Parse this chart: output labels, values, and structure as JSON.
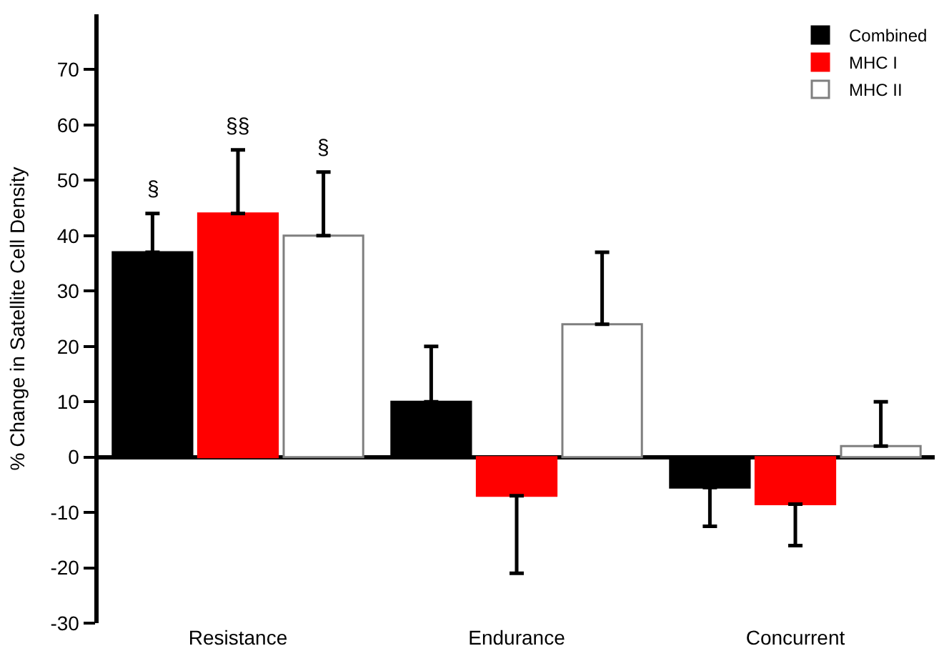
{
  "chart_data": {
    "type": "bar",
    "ylabel": "% Change in Satellite Cell Density",
    "categories": [
      "Resistance",
      "Endurance",
      "Concurrent"
    ],
    "series": [
      {
        "name": "Combined",
        "color": "#000000",
        "values": [
          37,
          10,
          -5.5
        ],
        "errors": [
          [
            37,
            44
          ],
          [
            10,
            20
          ],
          [
            -12.5,
            -5.5
          ]
        ]
      },
      {
        "name": "MHC I",
        "color": "#ff0000",
        "values": [
          44,
          -7,
          -8.5
        ],
        "errors": [
          [
            44,
            55.5
          ],
          [
            -21,
            -7
          ],
          [
            -16,
            -8.5
          ]
        ]
      },
      {
        "name": "MHC II",
        "color": "#ffffff",
        "values": [
          40,
          24,
          2
        ],
        "errors": [
          [
            40,
            51.5
          ],
          [
            24,
            37
          ],
          [
            2,
            10
          ]
        ]
      }
    ],
    "ylim": [
      -30,
      80
    ],
    "yticks": [
      -30,
      -20,
      -10,
      0,
      10,
      20,
      30,
      40,
      50,
      60,
      70
    ],
    "annotations": [
      "§",
      "§§",
      "§"
    ],
    "legend": "top right"
  }
}
